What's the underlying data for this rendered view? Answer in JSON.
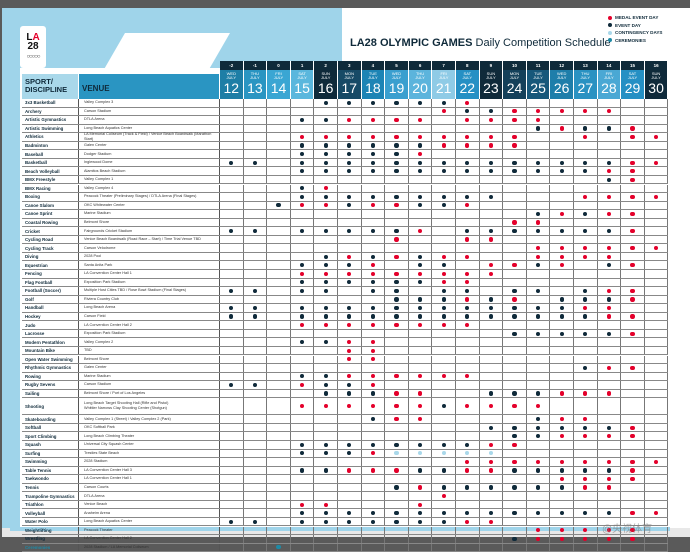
{
  "header": {
    "logo_text": "LA28",
    "title_bold": "LA28 OLYMPIC GAMES",
    "title_rest": "Daily Competition Schedule"
  },
  "legend": [
    {
      "key": "medal",
      "label": "MEDAL EVENT DAY",
      "color": "#e4002b"
    },
    {
      "key": "event",
      "label": "EVENT DAY",
      "color": "#0f2a3a"
    },
    {
      "key": "contingency",
      "label": "CONTINGENCY DAYS",
      "color": "#a9d8ea"
    },
    {
      "key": "ceremony",
      "label": "CEREMONIES",
      "color": "#1d8aa6"
    }
  ],
  "columns": {
    "sport": "SPORT/\nDISCIPLINE",
    "venue": "VENUE"
  },
  "month": "JULY",
  "days": [
    {
      "num": "-2",
      "weekday": "WED",
      "date": 12,
      "color": "#1e7ea6"
    },
    {
      "num": "-1",
      "weekday": "THU",
      "date": 13,
      "color": "#2a95c2"
    },
    {
      "num": "0",
      "weekday": "FRI",
      "date": 14,
      "color": "#3aa6d3"
    },
    {
      "num": "1",
      "weekday": "SAT",
      "date": 15,
      "color": "#5ab7dd"
    },
    {
      "num": "2",
      "weekday": "SUN",
      "date": 16,
      "color": "#0f2a3a"
    },
    {
      "num": "3",
      "weekday": "MON",
      "date": 17,
      "color": "#174a66"
    },
    {
      "num": "4",
      "weekday": "TUE",
      "date": 18,
      "color": "#1d84b5"
    },
    {
      "num": "5",
      "weekday": "WED",
      "date": 19,
      "color": "#3a9fcf"
    },
    {
      "num": "6",
      "weekday": "THU",
      "date": 20,
      "color": "#5cb4dc"
    },
    {
      "num": "7",
      "weekday": "FRI",
      "date": 21,
      "color": "#8fcbe6"
    },
    {
      "num": "8",
      "weekday": "SAT",
      "date": 22,
      "color": "#2690c4"
    },
    {
      "num": "9",
      "weekday": "SUN",
      "date": 23,
      "color": "#0f2a3a"
    },
    {
      "num": "10",
      "weekday": "MON",
      "date": 24,
      "color": "#14405a"
    },
    {
      "num": "11",
      "weekday": "TUE",
      "date": 25,
      "color": "#17577a"
    },
    {
      "num": "12",
      "weekday": "WED",
      "date": 26,
      "color": "#1e7eaa"
    },
    {
      "num": "13",
      "weekday": "THU",
      "date": 27,
      "color": "#2a92c2"
    },
    {
      "num": "14",
      "weekday": "FRI",
      "date": 28,
      "color": "#4aa8d4"
    },
    {
      "num": "15",
      "weekday": "SAT",
      "date": 29,
      "color": "#2590c4"
    },
    {
      "num": "16",
      "weekday": "SUN",
      "date": 30,
      "color": "#0f2a3a"
    }
  ],
  "sports": [
    {
      "sport": "3x3 Basketball",
      "venue": "Valley Complex 3",
      "event": [
        16,
        17,
        18,
        19,
        20,
        21
      ],
      "medal": [
        22
      ]
    },
    {
      "sport": "Archery",
      "venue": "Carson Stadium",
      "event": [
        22,
        23
      ],
      "medal": [
        21,
        24,
        25,
        26,
        27,
        28
      ]
    },
    {
      "sport": "Artistic Gymnastics",
      "venue": "DTLA Arena",
      "event": [
        15,
        16
      ],
      "medal": [
        17,
        18,
        19,
        20,
        22,
        23,
        24,
        25
      ]
    },
    {
      "sport": "Artistic Swimming",
      "venue": "Long Beach Aquatics Center",
      "event": [
        25,
        27,
        28
      ],
      "medal": [
        26,
        29
      ]
    },
    {
      "sport": "Athletics",
      "venue": "LA Memorial Coliseum (Track & Field) / Venice Beach Boardwalk (Marathon Start)",
      "event": [],
      "medal": [
        15,
        16,
        17,
        18,
        19,
        20,
        21,
        22,
        23,
        24,
        27,
        29,
        30
      ]
    },
    {
      "sport": "Badminton",
      "venue": "Galen Center",
      "event": [
        15,
        16,
        17,
        18,
        19,
        20
      ],
      "medal": [
        21,
        22,
        23,
        24
      ]
    },
    {
      "sport": "Baseball",
      "venue": "Dodger Stadium",
      "event": [
        15,
        16,
        17,
        18,
        19
      ],
      "medal": [
        20
      ]
    },
    {
      "sport": "Basketball",
      "venue": "Inglewood Dome",
      "event": [
        12,
        13,
        15,
        16,
        17,
        18,
        19,
        20,
        21,
        22,
        23,
        24,
        25,
        26,
        27,
        28
      ],
      "medal": [
        29,
        30
      ]
    },
    {
      "sport": "Beach Volleyball",
      "venue": "Alamitos Beach Stadium",
      "event": [
        15,
        16,
        17,
        18,
        19,
        20,
        21,
        22,
        23,
        24,
        25,
        26,
        27
      ],
      "medal": [
        28,
        29
      ]
    },
    {
      "sport": "BMX Freestyle",
      "venue": "Valley Complex 1",
      "event": [
        28
      ],
      "medal": [
        29
      ]
    },
    {
      "sport": "BMX Racing",
      "venue": "Valley Complex 4",
      "event": [
        15
      ],
      "medal": [
        16
      ]
    },
    {
      "sport": "Boxing",
      "venue": "Peacock Theater (Preliminary Stages) / DTLA Arena (Final Stages)",
      "event": [
        15,
        16,
        17,
        18,
        19,
        20,
        21,
        22,
        23
      ],
      "medal": [
        27,
        28,
        29,
        30
      ]
    },
    {
      "sport": "Canoe Slalom",
      "venue": "OKC Whitewater Center",
      "event": [
        14,
        17,
        20,
        21
      ],
      "medal": [
        15,
        16,
        18,
        19,
        22
      ]
    },
    {
      "sport": "Canoe Sprint",
      "venue": "Marine Stadium",
      "event": [
        25,
        27
      ],
      "medal": [
        26,
        28,
        29
      ]
    },
    {
      "sport": "Coastal Rowing",
      "venue": "Belmont Shore",
      "event": [],
      "medal": [
        24,
        25
      ]
    },
    {
      "sport": "Cricket",
      "venue": "Fairgrounds Cricket Stadium",
      "event": [
        12,
        13,
        15,
        16,
        17,
        18,
        19,
        22,
        23,
        24,
        25,
        26,
        27,
        28
      ],
      "medal": [
        20,
        29
      ]
    },
    {
      "sport": "Cycling Road",
      "venue": "Venice Beach Boardwalk (Road Race – Start) / Time Trial Venue TBD",
      "event": [],
      "medal": [
        19,
        22,
        23
      ]
    },
    {
      "sport": "Cycling Track",
      "venue": "Carson Velodrome",
      "event": [],
      "medal": [
        25,
        26,
        27,
        28,
        29,
        30
      ]
    },
    {
      "sport": "Diving",
      "venue": "2028 Pool",
      "event": [
        16,
        18,
        20
      ],
      "medal": [
        17,
        19,
        21,
        22,
        25,
        26,
        27,
        28
      ]
    },
    {
      "sport": "Equestrian",
      "venue": "Santa Anita Park",
      "event": [
        15,
        16,
        17,
        20,
        21,
        25,
        28
      ],
      "medal": [
        18,
        23,
        24,
        26,
        29
      ]
    },
    {
      "sport": "Fencing",
      "venue": "LA Convention Center Hall 1",
      "event": [],
      "medal": [
        15,
        16,
        17,
        18,
        19,
        20,
        21,
        22,
        23
      ]
    },
    {
      "sport": "Flag Football",
      "venue": "Exposition Park Stadium",
      "event": [
        15,
        16,
        17,
        18,
        19,
        20
      ],
      "medal": [
        21,
        22
      ]
    },
    {
      "sport": "Football (Soccer)",
      "venue": "Multiple Host Cities TBD / Rose Bowl Stadium (Final Stages)",
      "event": [
        12,
        13,
        15,
        16,
        18,
        19,
        21,
        22,
        24,
        25,
        27
      ],
      "medal": [
        28,
        29
      ]
    },
    {
      "sport": "Golf",
      "venue": "Riviera Country Club",
      "event": [
        19,
        20,
        21,
        23,
        26,
        27,
        28
      ],
      "medal": [
        22,
        24,
        29
      ]
    },
    {
      "sport": "Handball",
      "venue": "Long Beach Arena",
      "event": [
        12,
        13,
        15,
        16,
        17,
        18,
        19,
        20,
        21,
        22,
        23,
        24,
        25,
        26
      ],
      "medal": [
        27,
        28
      ]
    },
    {
      "sport": "Hockey",
      "venue": "Carson Field",
      "event": [
        12,
        13,
        15,
        16,
        17,
        18,
        19,
        20,
        21,
        22,
        23,
        24,
        25,
        26,
        27
      ],
      "medal": [
        28,
        29
      ]
    },
    {
      "sport": "Judo",
      "venue": "LA Convention Center Hall 2",
      "event": [],
      "medal": [
        15,
        16,
        17,
        18,
        19,
        20,
        21,
        22
      ]
    },
    {
      "sport": "Lacrosse",
      "venue": "Exposition Park Stadium",
      "event": [
        24,
        25,
        26,
        27,
        28
      ],
      "medal": [
        29
      ]
    },
    {
      "sport": "Modern Pentathlon",
      "venue": "Valley Complex 2",
      "event": [
        15,
        16
      ],
      "medal": [
        17,
        18
      ]
    },
    {
      "sport": "Mountain Bike",
      "venue": "TBD",
      "event": [],
      "medal": [
        17,
        18
      ]
    },
    {
      "sport": "Open Water Swimming",
      "venue": "Belmont Shore",
      "event": [],
      "medal": [
        17,
        18
      ]
    },
    {
      "sport": "Rhythmic Gymnastics",
      "venue": "Galen Center",
      "event": [
        27
      ],
      "medal": [
        28,
        29
      ]
    },
    {
      "sport": "Rowing",
      "venue": "Marine Stadium",
      "event": [
        15,
        16
      ],
      "medal": [
        17,
        18,
        19,
        20,
        21,
        22
      ]
    },
    {
      "sport": "Rugby Sevens",
      "venue": "Carson Stadium",
      "event": [
        12,
        13,
        16,
        17
      ],
      "medal": [
        15,
        18
      ]
    },
    {
      "sport": "Sailing",
      "venue": "Belmont Shore / Port of Los Angeles",
      "event": [
        16,
        17,
        18,
        23,
        24,
        25
      ],
      "medal": [
        19,
        20,
        26,
        27,
        28
      ]
    },
    {
      "sport": "Shooting",
      "venue": "Long Beach Target Shooting Hall (Rifle and Pistol)\nWhittier Narrows Clay Shooting Center (Shotgun)",
      "event": [
        21
      ],
      "medal": [
        15,
        16,
        17,
        18,
        19,
        20,
        22,
        23,
        24,
        25
      ],
      "tall": true
    },
    {
      "sport": "Skateboarding",
      "venue": "Valley Complex 1 (Street) / Valley Complex 2 (Park)",
      "event": [
        18,
        25
      ],
      "medal": [
        19,
        20,
        26,
        27
      ]
    },
    {
      "sport": "Softball",
      "venue": "OKC Softball Park",
      "event": [
        23,
        24,
        25,
        26,
        27,
        28
      ],
      "medal": [
        29
      ]
    },
    {
      "sport": "Sport Climbing",
      "venue": "Long Beach Climbing Theater",
      "event": [
        24,
        25
      ],
      "medal": [
        26,
        27,
        28,
        29
      ]
    },
    {
      "sport": "Squash",
      "venue": "Universal City Squash Center",
      "event": [
        15,
        16,
        17,
        18,
        19,
        20,
        21,
        22
      ],
      "medal": [
        23,
        24
      ]
    },
    {
      "sport": "Surfing",
      "venue": "Trestles State Beach",
      "event": [
        15,
        16,
        17
      ],
      "medal": [
        18
      ],
      "contingency": [
        19,
        20,
        21,
        22,
        23
      ]
    },
    {
      "sport": "Swimming",
      "venue": "2028 Stadium",
      "event": [],
      "medal": [
        22,
        23,
        24,
        25,
        26,
        27,
        28,
        29,
        30
      ]
    },
    {
      "sport": "Table Tennis",
      "venue": "LA Convention Center Hall 3",
      "event": [
        15,
        16,
        20,
        21,
        24,
        25,
        26,
        27,
        28
      ],
      "medal": [
        17,
        18,
        19,
        22,
        23,
        29
      ]
    },
    {
      "sport": "Taekwondo",
      "venue": "LA Convention Center Hall 1",
      "event": [],
      "medal": [
        26,
        27,
        28,
        29
      ]
    },
    {
      "sport": "Tennis",
      "venue": "Carson Courts",
      "event": [
        19,
        21,
        22,
        23,
        24,
        25,
        26
      ],
      "medal": [
        20,
        27,
        28
      ]
    },
    {
      "sport": "Trampoline Gymnastics",
      "venue": "DTLA Arena",
      "event": [],
      "medal": [
        21
      ]
    },
    {
      "sport": "Triathlon",
      "venue": "Venice Beach",
      "event": [],
      "medal": [
        15,
        16,
        20
      ]
    },
    {
      "sport": "Volleyball",
      "venue": "Anaheim Arena",
      "event": [
        15,
        16,
        17,
        18,
        19,
        20,
        21,
        22,
        23,
        24,
        25,
        26,
        27,
        28
      ],
      "medal": [
        29,
        30
      ]
    },
    {
      "sport": "Water Polo",
      "venue": "Long Beach Aquatics Center",
      "event": [
        12,
        13,
        15,
        16,
        17,
        18,
        19,
        20,
        21
      ],
      "medal": [
        22,
        23
      ]
    },
    {
      "sport": "Weightlifting",
      "venue": "Peacock Theater",
      "event": [],
      "medal": [
        25,
        26,
        27,
        28,
        29
      ]
    },
    {
      "sport": "Wrestling",
      "venue": "LA Convention Center Hall 2",
      "event": [
        24
      ],
      "medal": [
        25,
        26,
        27,
        28,
        29
      ]
    },
    {
      "sport": "Ceremonies",
      "venue": "2028 Stadium / LA Memorial Coliseum",
      "event": [],
      "medal": [],
      "ceremony": [
        14
      ],
      "highlight": true
    }
  ],
  "watermark": "@央视体育"
}
